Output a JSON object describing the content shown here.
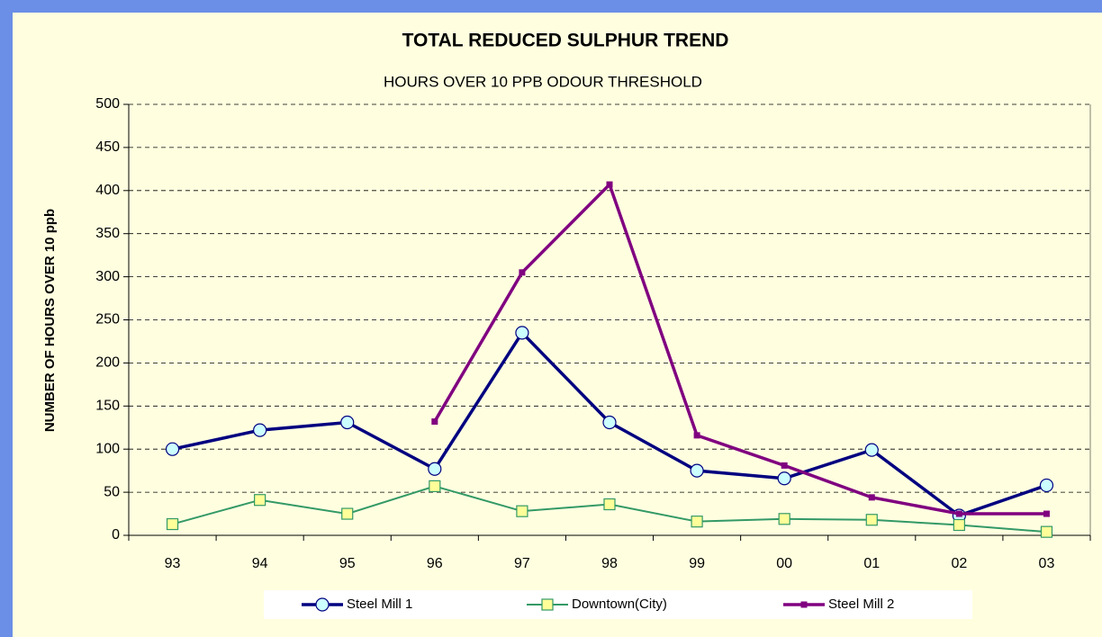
{
  "chart_data": {
    "type": "line",
    "title": "TOTAL REDUCED SULPHUR TREND",
    "subtitle": "HOURS OVER 10 PPB ODOUR THRESHOLD",
    "y_label": "NUMBER OF HOURS OVER 10 ppb",
    "categories": [
      "93",
      "94",
      "95",
      "96",
      "97",
      "98",
      "99",
      "00",
      "01",
      "02",
      "03"
    ],
    "series": [
      {
        "name": "Steel Mill 1",
        "color": "#000080",
        "marker": "circle",
        "marker_fill": "#ccffff",
        "values": [
          100,
          122,
          131,
          77,
          235,
          131,
          75,
          66,
          99,
          23,
          58
        ]
      },
      {
        "name": "Downtown(City)",
        "color": "#339966",
        "marker": "square",
        "marker_fill": "#ffff99",
        "values": [
          13,
          41,
          25,
          57,
          28,
          36,
          16,
          19,
          18,
          12,
          4
        ]
      },
      {
        "name": "Steel Mill 2",
        "color": "#800080",
        "marker": "small-square",
        "marker_fill": "#800080",
        "values": [
          null,
          null,
          null,
          132,
          305,
          407,
          116,
          81,
          44,
          25,
          25
        ]
      }
    ],
    "ylim": [
      0,
      500
    ],
    "yticks": [
      0,
      50,
      100,
      150,
      200,
      250,
      300,
      350,
      400,
      450,
      500
    ],
    "grid": true,
    "legend": "bottom"
  }
}
